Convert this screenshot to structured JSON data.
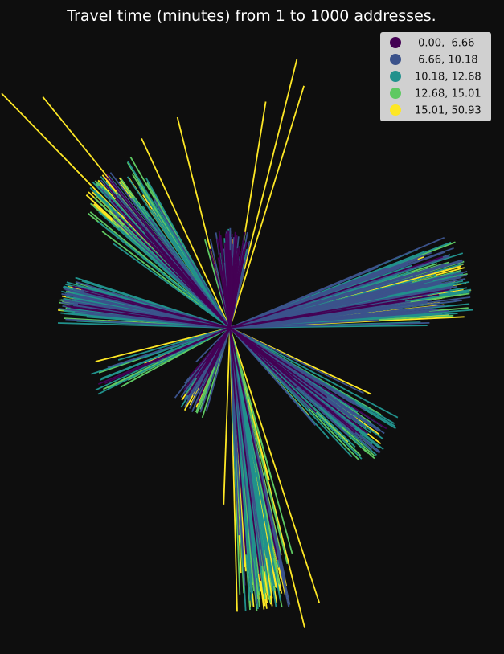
{
  "chart_data": {
    "type": "line",
    "title": "Travel time (minutes) from 1 to 1000 addresses.",
    "xlabel": "",
    "ylabel": "",
    "grid": false,
    "axes_visible": false,
    "background": "#0e0e0e",
    "legend": {
      "placement": "top-right",
      "background": "#d0d0d0",
      "entries": [
        {
          "label": " 0.00,  6.66",
          "color": "#440154"
        },
        {
          "label": " 6.66, 10.18",
          "color": "#3b528b"
        },
        {
          "label": "10.18, 12.68",
          "color": "#21918c"
        },
        {
          "label": "12.68, 15.01",
          "color": "#5ec962"
        },
        {
          "label": "15.01, 50.93",
          "color": "#fde725"
        }
      ]
    },
    "origin_label": "1",
    "n_destinations": 1000,
    "classification": "quantiles",
    "class_breaks": [
      0.0,
      6.66,
      10.18,
      12.68,
      15.01,
      50.93
    ],
    "colors": [
      "#440154",
      "#3b528b",
      "#21918c",
      "#5ec962",
      "#fde725"
    ],
    "direction_sectors": [
      {
        "direction": "north",
        "bearing_range": [
          -20,
          20
        ],
        "dominant_class": 1
      },
      {
        "direction": "north-west",
        "bearing_range": [
          -60,
          -20
        ],
        "dominant_class": 4
      },
      {
        "direction": "west",
        "bearing_range": [
          -105,
          -60
        ],
        "dominant_class": 3
      },
      {
        "direction": "east",
        "bearing_range": [
          60,
          110
        ],
        "dominant_class": 2
      },
      {
        "direction": "south-east",
        "bearing_range": [
          110,
          160
        ],
        "dominant_class": 2
      },
      {
        "direction": "south",
        "bearing_range": [
          160,
          200
        ],
        "dominant_class": 4
      }
    ]
  }
}
